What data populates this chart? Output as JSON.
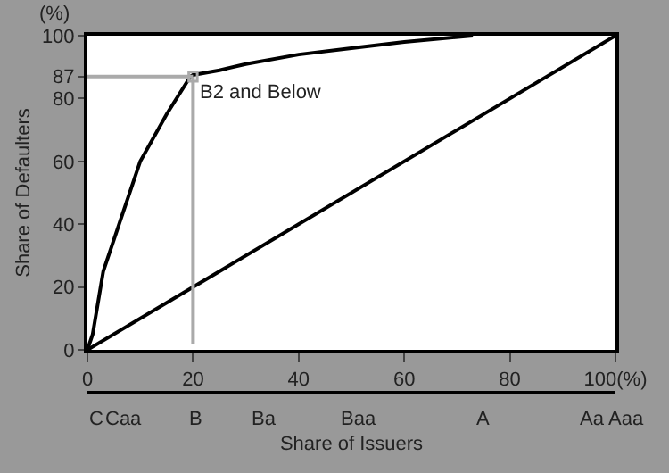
{
  "chart_data": {
    "type": "line",
    "xlabel": "Share of Issuers",
    "ylabel": "Share of Defaulters",
    "series": [
      {
        "color": "#000000",
        "x": [
          0,
          1,
          3,
          6,
          10,
          15,
          19.5,
          20,
          25,
          30,
          40,
          50,
          60,
          73
        ],
        "values": [
          0,
          5,
          25,
          40,
          60,
          75,
          87,
          87.5,
          89,
          91,
          94,
          96,
          98,
          100
        ]
      },
      {
        "color": "#000000",
        "x": [
          0,
          100
        ],
        "values": [
          0,
          100
        ]
      }
    ],
    "xlim": [
      0,
      100
    ],
    "xticks": [
      0,
      20,
      40,
      60,
      80,
      {
        "value": 100,
        "label": "100(%)"
      }
    ],
    "ylim": [
      0,
      100
    ],
    "yticks": [
      0,
      20,
      40,
      60,
      80,
      87,
      100
    ],
    "ref_lines": [
      {
        "axis": "y",
        "value": 87,
        "color": "#aaaaaa"
      },
      {
        "axis": "x",
        "value": 20,
        "color": "#aaaaaa"
      }
    ],
    "annotations": [
      "(%)",
      {
        "text": "B2 and Below",
        "x": 20,
        "y": 87
      },
      "C",
      "Caa",
      "B",
      "Ba",
      "Baa",
      "A",
      "Aa",
      "Aaa"
    ],
    "marker": "none",
    "line_style": "solid"
  }
}
